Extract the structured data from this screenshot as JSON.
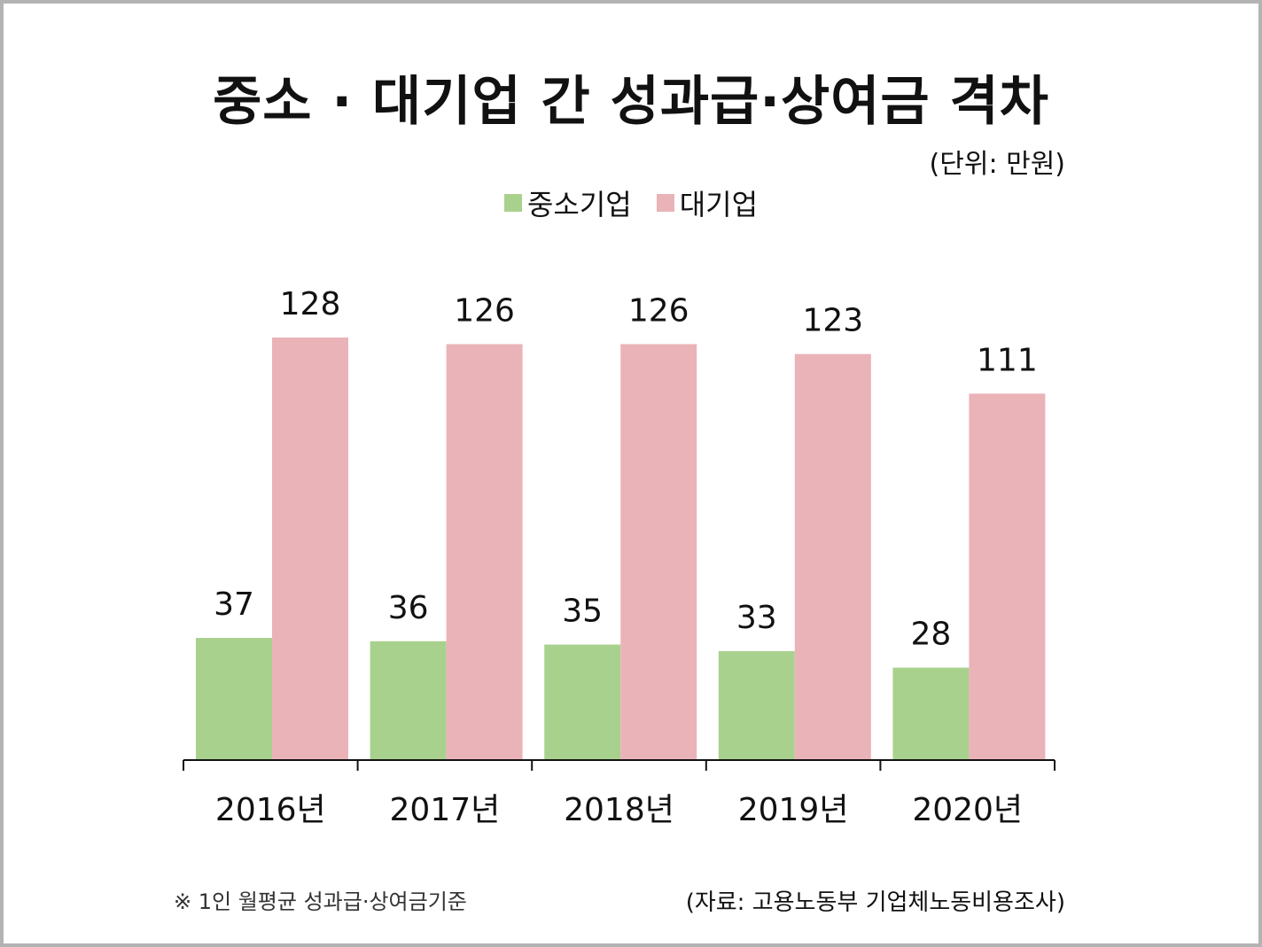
{
  "title": "중소 · 대기업 간 성과급·상여금 격차",
  "unit_note": "(단위: 만원)",
  "footnote": "※ 1인 월평균 성과급·상여금기준",
  "source": "(자료: 고용노동부 기업체노동비용조사)",
  "colors": {
    "sme": "#a9d18e",
    "large": "#eab3b8",
    "axis": "#111111",
    "frame": "#b3b3b3"
  },
  "chart_data": {
    "type": "bar",
    "categories": [
      "2016년",
      "2017년",
      "2018년",
      "2019년",
      "2020년"
    ],
    "series": [
      {
        "name": "중소기업",
        "values": [
          37,
          36,
          35,
          33,
          28
        ]
      },
      {
        "name": "대기업",
        "values": [
          128,
          126,
          126,
          123,
          111
        ]
      }
    ],
    "ylim": [
      0,
      128
    ],
    "grid": false,
    "legend_position": "top-center",
    "data_labels": true
  }
}
